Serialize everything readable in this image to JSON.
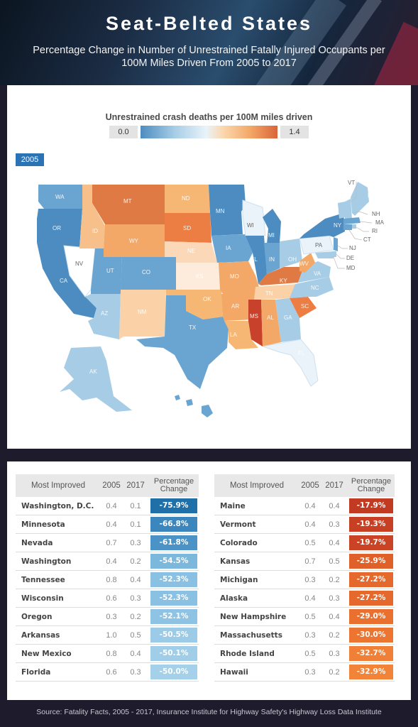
{
  "header": {
    "title": "Seat-Belted States",
    "subtitle": "Percentage Change in Number of Unrestrained Fatally Injured Occupants per 100M Miles Driven From 2005 to 2017"
  },
  "legend": {
    "title": "Unrestrained crash deaths per 100M miles driven",
    "min": "0.0",
    "max": "1.4"
  },
  "map": {
    "year": "2005",
    "states": [
      "WA",
      "OR",
      "CA",
      "NV",
      "ID",
      "MT",
      "WY",
      "UT",
      "CO",
      "AZ",
      "NM",
      "ND",
      "SD",
      "NE",
      "KS",
      "OK",
      "TX",
      "MN",
      "IA",
      "MO",
      "AR",
      "LA",
      "WI",
      "IL",
      "MI",
      "IN",
      "OH",
      "KY",
      "TN",
      "MS",
      "AL",
      "GA",
      "FL",
      "SC",
      "NC",
      "VA",
      "WV",
      "PA",
      "NY",
      "VT",
      "NH",
      "ME",
      "MA",
      "RI",
      "CT",
      "NJ",
      "DE",
      "MD",
      "AK",
      "HI"
    ]
  },
  "colors": {
    "best": "#2a7ab5",
    "worst": "#c8412a"
  },
  "tables": {
    "headers": {
      "name": "Most Improved",
      "y2005": "2005",
      "y2017": "2017",
      "pct": "Percentage Change"
    },
    "left": [
      {
        "name": "Washington, D.C.",
        "y2005": "0.4",
        "y2017": "0.1",
        "pct": "-75.9%",
        "color": "#1f6fa8"
      },
      {
        "name": "Minnesota",
        "y2005": "0.4",
        "y2017": "0.1",
        "pct": "-66.8%",
        "color": "#3a86bd"
      },
      {
        "name": "Nevada",
        "y2005": "0.7",
        "y2017": "0.3",
        "pct": "-61.8%",
        "color": "#4b93c6"
      },
      {
        "name": "Washington",
        "y2005": "0.4",
        "y2017": "0.2",
        "pct": "-54.5%",
        "color": "#7cb7dc"
      },
      {
        "name": "Tennessee",
        "y2005": "0.8",
        "y2017": "0.4",
        "pct": "-52.3%",
        "color": "#8ac0e1"
      },
      {
        "name": "Wisconsin",
        "y2005": "0.6",
        "y2017": "0.3",
        "pct": "-52.3%",
        "color": "#8ac0e1"
      },
      {
        "name": "Oregon",
        "y2005": "0.3",
        "y2017": "0.2",
        "pct": "-52.1%",
        "color": "#8ec3e3"
      },
      {
        "name": "Arkansas",
        "y2005": "1.0",
        "y2017": "0.5",
        "pct": "-50.5%",
        "color": "#9bcbe7"
      },
      {
        "name": "New Mexico",
        "y2005": "0.8",
        "y2017": "0.4",
        "pct": "-50.1%",
        "color": "#a0cee8"
      },
      {
        "name": "Florida",
        "y2005": "0.6",
        "y2017": "0.3",
        "pct": "-50.0%",
        "color": "#a4d0e9"
      }
    ],
    "right": [
      {
        "name": "Maine",
        "y2005": "0.4",
        "y2017": "0.4",
        "pct": "-17.9%",
        "color": "#c23a22"
      },
      {
        "name": "Vermont",
        "y2005": "0.4",
        "y2017": "0.3",
        "pct": "-19.3%",
        "color": "#c84024"
      },
      {
        "name": "Colorado",
        "y2005": "0.5",
        "y2017": "0.4",
        "pct": "-19.7%",
        "color": "#ca4325"
      },
      {
        "name": "Kansas",
        "y2005": "0.7",
        "y2017": "0.5",
        "pct": "-25.9%",
        "color": "#e0602a"
      },
      {
        "name": "Michigan",
        "y2005": "0.3",
        "y2017": "0.2",
        "pct": "-27.2%",
        "color": "#e5682c"
      },
      {
        "name": "Alaska",
        "y2005": "0.4",
        "y2017": "0.3",
        "pct": "-27.2%",
        "color": "#e5682c"
      },
      {
        "name": "New Hampshire",
        "y2005": "0.5",
        "y2017": "0.4",
        "pct": "-29.0%",
        "color": "#ea7030"
      },
      {
        "name": "Massachusetts",
        "y2005": "0.3",
        "y2017": "0.2",
        "pct": "-30.0%",
        "color": "#ec7532"
      },
      {
        "name": "Rhode Island",
        "y2005": "0.5",
        "y2017": "0.3",
        "pct": "-32.7%",
        "color": "#f08038"
      },
      {
        "name": "Hawaii",
        "y2005": "0.3",
        "y2017": "0.2",
        "pct": "-32.9%",
        "color": "#f2843a"
      }
    ]
  },
  "source": "Source: Fatality Facts, 2005 - 2017, Insurance Institute for Highway Safety's Highway Loss Data Institute"
}
